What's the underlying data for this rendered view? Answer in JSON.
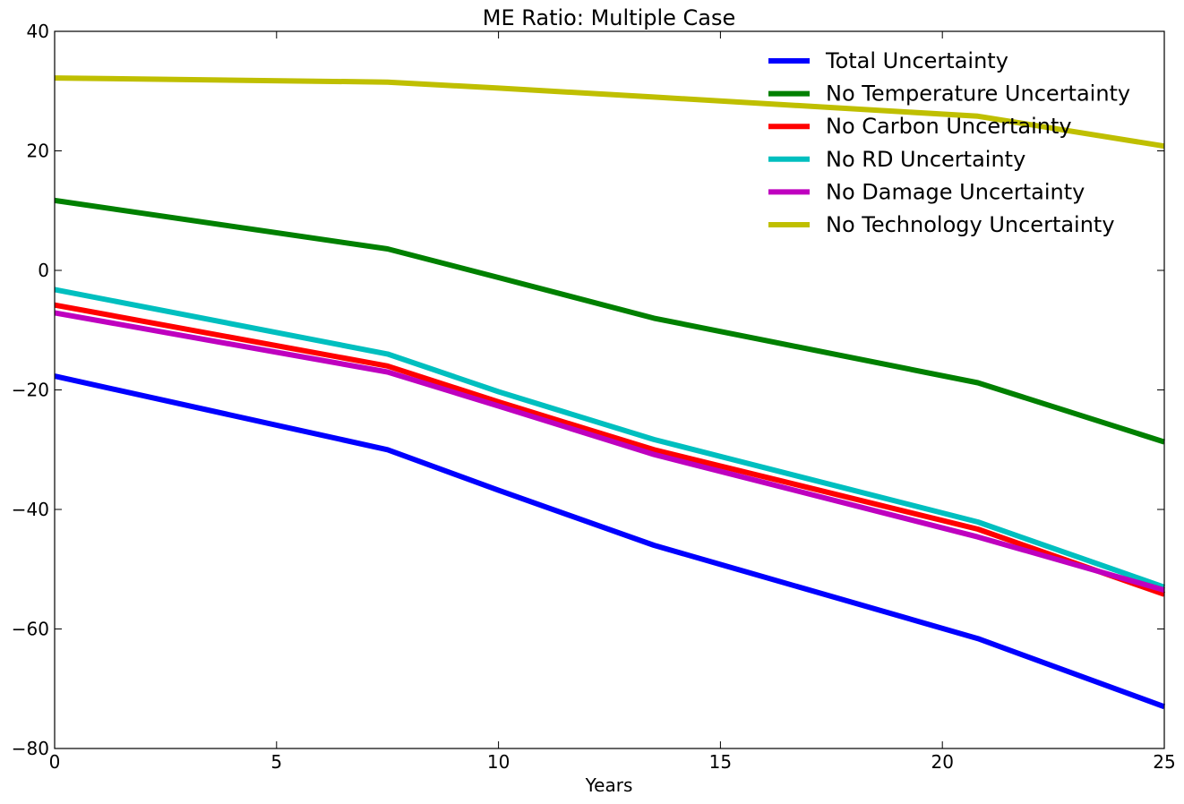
{
  "chart_data": {
    "type": "line",
    "title": "ME Ratio: Multiple Case",
    "xlabel": "Years",
    "ylabel": "",
    "xlim": [
      0,
      25
    ],
    "ylim": [
      -80,
      40
    ],
    "xticks": [
      0,
      5,
      10,
      15,
      20,
      25
    ],
    "yticks": [
      -80,
      -60,
      -40,
      -20,
      0,
      20,
      40
    ],
    "grid": false,
    "legend_position": "top-right",
    "x": [
      0,
      7.5,
      20.8,
      25
    ],
    "series": [
      {
        "name": "Total Uncertainty",
        "color": "#0000ff",
        "x": [
          0,
          7.5,
          10,
          13.5,
          20.8,
          25
        ],
        "values": [
          -17.7,
          -30.0,
          -36.8,
          -46.0,
          -61.6,
          -73.0
        ]
      },
      {
        "name": "No Temperature Uncertainty",
        "color": "#008000",
        "x": [
          0,
          7.5,
          10,
          13.5,
          20.8,
          25
        ],
        "values": [
          11.7,
          3.6,
          -1.2,
          -8.0,
          -18.8,
          -28.7
        ]
      },
      {
        "name": "No Carbon Uncertainty",
        "color": "#ff0000",
        "x": [
          0,
          7.5,
          10,
          13.5,
          20.8,
          25
        ],
        "values": [
          -5.8,
          -16.0,
          -22.0,
          -30.0,
          -43.3,
          -54.2
        ]
      },
      {
        "name": "No RD Uncertainty",
        "color": "#00bfbf",
        "x": [
          0,
          7.5,
          10,
          13.5,
          20.8,
          25
        ],
        "values": [
          -3.2,
          -14.0,
          -20.3,
          -28.3,
          -42.1,
          -53.0
        ]
      },
      {
        "name": "No Damage Uncertainty",
        "color": "#bf00bf",
        "x": [
          0,
          7.5,
          10,
          13.5,
          20.8,
          25
        ],
        "values": [
          -7.1,
          -17.0,
          -22.7,
          -30.8,
          -44.6,
          -53.5
        ]
      },
      {
        "name": "No Technology Uncertainty",
        "color": "#bfbf00",
        "x": [
          0,
          7.5,
          10,
          13.5,
          20.8,
          25
        ],
        "values": [
          32.2,
          31.5,
          30.5,
          29.0,
          25.8,
          20.8
        ]
      }
    ]
  }
}
